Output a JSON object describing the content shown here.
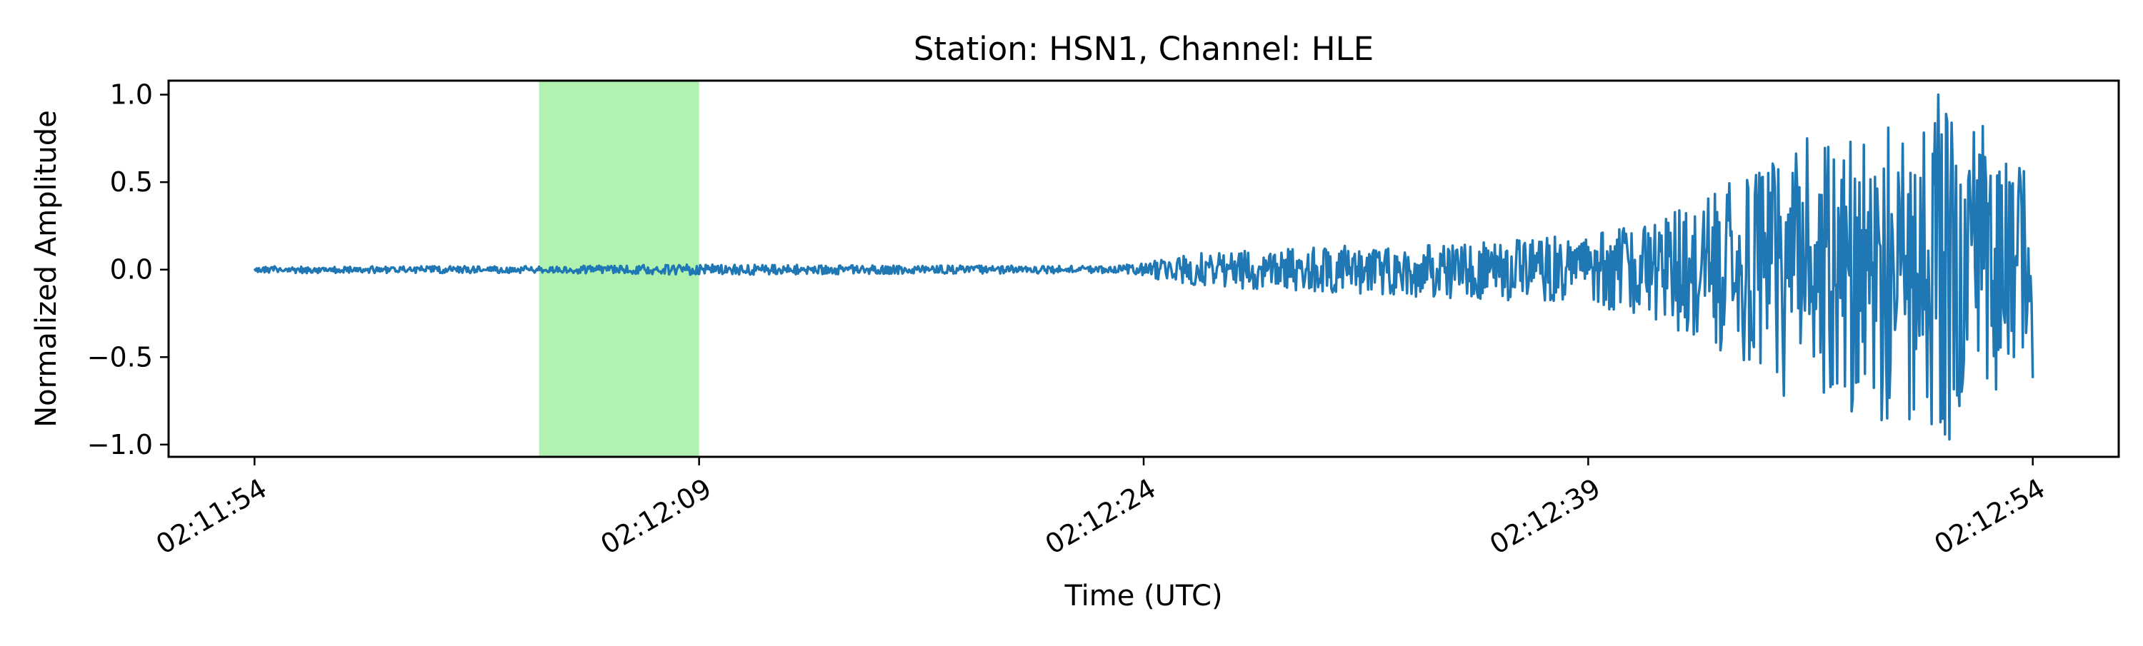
{
  "chart_data": {
    "type": "line",
    "title": "Station: HSN1, Channel: HLE",
    "xlabel": "Time (UTC)",
    "ylabel": "Normalized Amplitude",
    "x_unit": "seconds",
    "x_ticks": [
      {
        "t": 0,
        "label": "02:11:54"
      },
      {
        "t": 15,
        "label": "02:12:09"
      },
      {
        "t": 30,
        "label": "02:12:24"
      },
      {
        "t": 45,
        "label": "02:12:39"
      },
      {
        "t": 60,
        "label": "02:12:54"
      }
    ],
    "xlim": [
      "02:11:51",
      "02:12:57"
    ],
    "xlim_seconds": [
      -2.9,
      62.9
    ],
    "ylim": [
      -1.07,
      1.08
    ],
    "y_ticks": [
      {
        "v": 1.0,
        "label": "1.0"
      },
      {
        "v": 0.5,
        "label": "0.5"
      },
      {
        "v": 0.0,
        "label": "0.0"
      },
      {
        "v": -0.5,
        "label": "−0.5"
      },
      {
        "v": -1.0,
        "label": "−1.0"
      }
    ],
    "grid": false,
    "highlight_span": {
      "start": "02:12:04",
      "end": "02:12:09",
      "color": "#b2f2b0"
    },
    "series": [
      {
        "color": "#1f77b4",
        "envelope": [
          {
            "t": 0,
            "a": 0.02
          },
          {
            "t": 10,
            "a": 0.02
          },
          {
            "t": 15,
            "a": 0.03
          },
          {
            "t": 29,
            "a": 0.02
          },
          {
            "t": 30.5,
            "a": 0.06
          },
          {
            "t": 32,
            "a": 0.1
          },
          {
            "t": 36,
            "a": 0.13
          },
          {
            "t": 40,
            "a": 0.16
          },
          {
            "t": 45,
            "a": 0.2
          },
          {
            "t": 47,
            "a": 0.28
          },
          {
            "t": 51,
            "a": 0.6
          },
          {
            "t": 55,
            "a": 0.85
          },
          {
            "t": 57,
            "a": 0.95
          },
          {
            "t": 59,
            "a": 0.7
          },
          {
            "t": 60,
            "a": 0.6
          }
        ],
        "peaks": [
          {
            "t": 56.8,
            "v": 1.0
          },
          {
            "t": 57.2,
            "v": -0.97
          },
          {
            "t": 54.9,
            "v": -0.86
          },
          {
            "t": 55.1,
            "v": -0.85
          },
          {
            "t": 58.3,
            "v": 0.82
          },
          {
            "t": 53.9,
            "v": -0.81
          },
          {
            "t": 52.4,
            "v": 0.75
          },
          {
            "t": 51.6,
            "v": -0.72
          },
          {
            "t": 55.6,
            "v": 0.72
          },
          {
            "t": 60,
            "v": -0.62
          },
          {
            "t": 59.2,
            "v": 0.5
          },
          {
            "t": 50.9,
            "v": 0.53
          }
        ]
      }
    ]
  }
}
